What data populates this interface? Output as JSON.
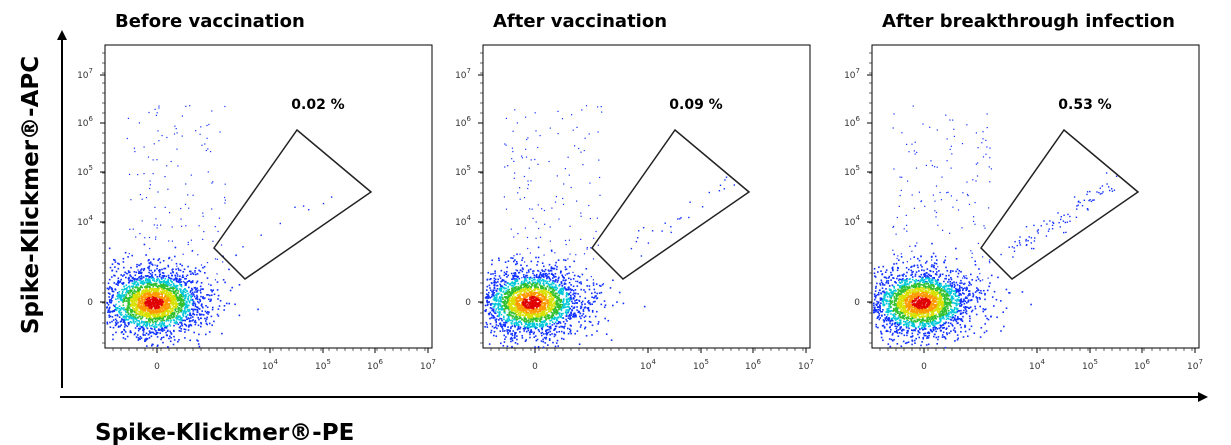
{
  "panels": [
    {
      "title": "Before vaccination",
      "gate_label": "0.02 %"
    },
    {
      "title": "After vaccination",
      "gate_label": "0.09 %"
    },
    {
      "title": "After breakthrough infection",
      "gate_label": "0.53 %"
    }
  ],
  "y_ticks": [
    {
      "base": "10",
      "exp": "7"
    },
    {
      "base": "10",
      "exp": "6"
    },
    {
      "base": "10",
      "exp": "5"
    },
    {
      "base": "10",
      "exp": "4"
    },
    {
      "base": "0"
    }
  ],
  "x_ticks": [
    {
      "base": "0"
    },
    {
      "base": "10",
      "exp": "4"
    },
    {
      "base": "10",
      "exp": "5"
    },
    {
      "base": "10",
      "exp": "6"
    },
    {
      "base": "10",
      "exp": "7"
    }
  ],
  "y_axis_label": "Spike-Klickmer®-APC",
  "x_axis_label": "Spike-Klickmer®-PE"
}
